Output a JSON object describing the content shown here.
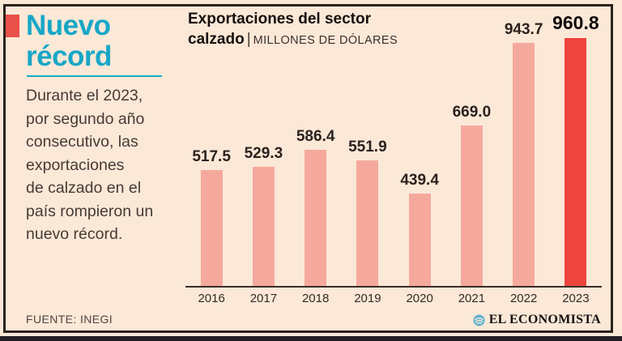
{
  "left": {
    "headline_lines": [
      "Nuevo",
      "récord"
    ],
    "description_lines": [
      "Durante el 2023,",
      "por segundo año",
      "consecutivo, las",
      "exportaciones",
      "de calzado en el",
      "país rompieron un",
      "nuevo récord."
    ],
    "source": "FUENTE: INEGI"
  },
  "chart": {
    "title_line1": "Exportaciones del sector",
    "title_line2": "calzado",
    "separator": "|",
    "units": "MILLONES DE DÓLARES"
  },
  "chart_data": {
    "type": "bar",
    "title": "Exportaciones del sector calzado",
    "subtitle": "MILLONES DE DÓLARES",
    "categories": [
      "2016",
      "2017",
      "2018",
      "2019",
      "2020",
      "2021",
      "2022",
      "2023"
    ],
    "values": [
      517.5,
      529.3,
      586.4,
      551.9,
      439.4,
      669.0,
      943.7,
      960.8
    ],
    "highlight_index": 7,
    "bar_color": "#F5A99C",
    "highlight_color": "#EE443E",
    "value_labels_shown": true,
    "xlabel": "",
    "ylabel": "",
    "ylim": [
      0,
      1000
    ],
    "grid": false,
    "legend": "none"
  },
  "footer": {
    "brand": "EL ECONOMISTA"
  },
  "colors": {
    "background": "#FBE8D7",
    "frame": "#2B211D",
    "accent_cyan": "#17A7C7",
    "accent_red": "#E9514A",
    "bottom_bar": "#211D24"
  }
}
